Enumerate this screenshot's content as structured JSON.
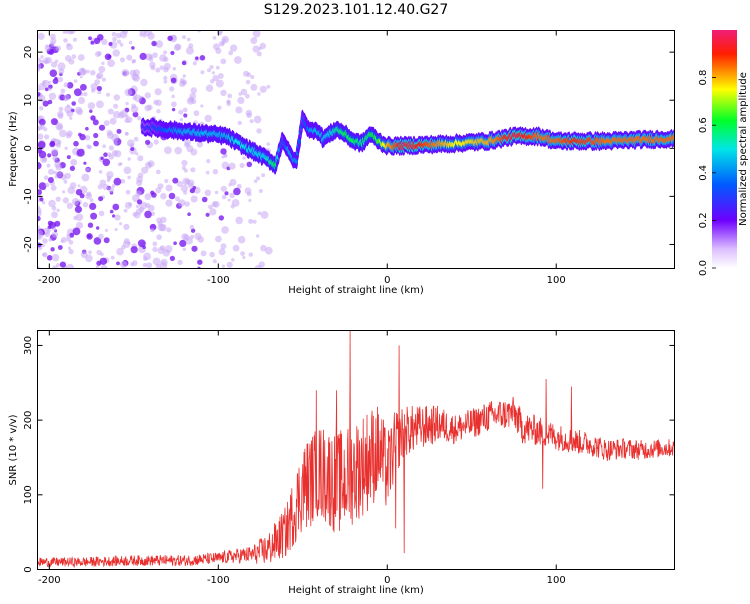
{
  "title": "S129.2023.101.12.40.G27",
  "chart_data": [
    {
      "type": "heatmap",
      "xlabel": "Height of straight line (km)",
      "ylabel": "Frequency (Hz)",
      "xlim": [
        -207,
        170
      ],
      "ylim": [
        -25,
        24.5
      ],
      "x_ticks": [
        -200,
        -100,
        0,
        100
      ],
      "y_ticks": [
        -20,
        -10,
        0,
        10,
        20
      ],
      "colorbar": {
        "label": "Normalized spectral amplitude",
        "range": [
          0.0,
          1.0
        ],
        "ticks": [
          0.0,
          0.2,
          0.4,
          0.6,
          0.8
        ]
      },
      "ridge_frequency_hz": {
        "x": [
          -145,
          -120,
          -105,
          -95,
          -88,
          -80,
          -72,
          -66,
          -62,
          -58,
          -54,
          -50,
          -46,
          -42,
          -38,
          -34,
          -30,
          -25,
          -20,
          -15,
          -10,
          -5,
          0,
          10,
          20,
          40,
          60,
          75,
          90,
          100,
          110,
          130,
          150,
          170
        ],
        "y": [
          4.5,
          3.5,
          3,
          2.5,
          1,
          -0.5,
          -2,
          -3.5,
          2,
          -1,
          -3,
          6.5,
          3.5,
          4,
          2,
          3,
          4,
          3,
          1.5,
          1,
          3,
          1.5,
          0.5,
          0.5,
          0.7,
          1,
          1.5,
          2.5,
          2.5,
          1.5,
          1.5,
          1.5,
          1.8,
          2
        ],
        "amplitude": [
          0.25,
          0.45,
          0.45,
          0.45,
          0.5,
          0.5,
          0.5,
          0.6,
          0.3,
          0.45,
          0.4,
          0.3,
          0.4,
          0.45,
          0.45,
          0.5,
          0.55,
          0.6,
          0.6,
          0.55,
          0.6,
          0.65,
          0.8,
          0.95,
          0.9,
          0.75,
          0.8,
          0.95,
          0.85,
          0.85,
          0.9,
          0.85,
          0.85,
          0.85
        ]
      },
      "noise_region_x": [
        -207,
        -80
      ],
      "noise_amplitude": 0.05
    },
    {
      "type": "line",
      "xlabel": "Height of straight line (km)",
      "ylabel": "SNR (10 * v/v)",
      "xlim": [
        -207,
        170
      ],
      "ylim": [
        0,
        320
      ],
      "x_ticks": [
        -200,
        -100,
        0,
        100
      ],
      "y_ticks": [
        0,
        100,
        200,
        300
      ],
      "color": "#e8312f",
      "envelope": {
        "x": [
          -207,
          -180,
          -150,
          -120,
          -100,
          -90,
          -80,
          -70,
          -60,
          -55,
          -50,
          -45,
          -40,
          -35,
          -30,
          -25,
          -20,
          -15,
          -10,
          -5,
          0,
          5,
          10,
          20,
          30,
          40,
          50,
          60,
          70,
          75,
          80,
          90,
          100,
          110,
          120,
          130,
          140,
          150,
          160,
          170
        ],
        "y": [
          10,
          10,
          12,
          12,
          15,
          18,
          20,
          28,
          50,
          80,
          110,
          120,
          130,
          125,
          115,
          120,
          130,
          140,
          150,
          160,
          130,
          170,
          185,
          190,
          195,
          188,
          195,
          205,
          208,
          210,
          190,
          185,
          178,
          172,
          168,
          160,
          162,
          160,
          162,
          163
        ]
      },
      "spread": {
        "x": [
          -207,
          -100,
          -80,
          -60,
          -50,
          -30,
          -10,
          0,
          10,
          40,
          80,
          100,
          140,
          170
        ],
        "y": [
          6,
          8,
          12,
          35,
          60,
          70,
          70,
          55,
          35,
          20,
          22,
          18,
          14,
          12
        ]
      },
      "peaks": [
        {
          "x": -22,
          "y": 320
        },
        {
          "x": 7,
          "y": 300
        },
        {
          "x": -42,
          "y": 240
        },
        {
          "x": -30,
          "y": 240
        },
        {
          "x": 94,
          "y": 255
        },
        {
          "x": 109,
          "y": 245
        }
      ],
      "dips": [
        {
          "x": 10,
          "y": 22
        },
        {
          "x": 5,
          "y": 55
        },
        {
          "x": 92,
          "y": 108
        }
      ]
    }
  ]
}
